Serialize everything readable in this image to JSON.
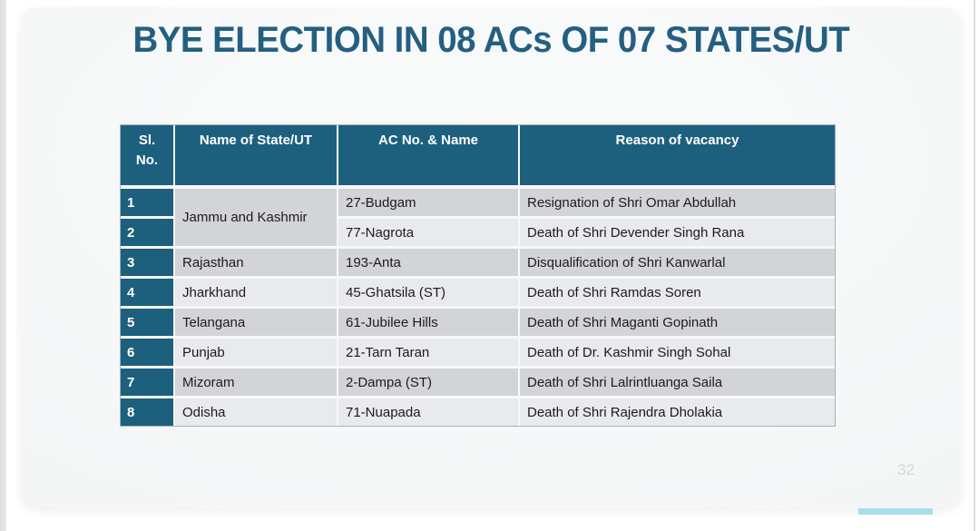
{
  "slide": {
    "title": "BYE ELECTION IN 08 ACs OF 07 STATES/UT",
    "page_number": "32"
  },
  "table": {
    "columns": [
      "Sl.\nNo.",
      "Name of State/UT",
      "AC No. & Name",
      "Reason of vacancy"
    ],
    "rows": [
      {
        "sl": "1",
        "state": "Jammu and Kashmir",
        "ac": "27-Budgam",
        "reason": "Resignation of Shri Omar Abdullah"
      },
      {
        "sl": "2",
        "state": null,
        "ac": "77-Nagrota",
        "reason": "Death of Shri Devender Singh Rana"
      },
      {
        "sl": "3",
        "state": "Rajasthan",
        "ac": "193-Anta",
        "reason": "Disqualification of Shri Kanwarlal"
      },
      {
        "sl": "4",
        "state": "Jharkhand",
        "ac": "45-Ghatsila (ST)",
        "reason": "Death of Shri Ramdas Soren"
      },
      {
        "sl": "5",
        "state": "Telangana",
        "ac": "61-Jubilee Hills",
        "reason": "Death of Shri Maganti Gopinath"
      },
      {
        "sl": "6",
        "state": "Punjab",
        "ac": "21-Tarn Taran",
        "reason": "Death of Dr. Kashmir Singh Sohal"
      },
      {
        "sl": "7",
        "state": "Mizoram",
        "ac": "2-Dampa (ST)",
        "reason": "Death of Shri Lalrintluanga Saila"
      },
      {
        "sl": "8",
        "state": "Odisha",
        "ac": "71-Nuapada",
        "reason": "Death of Shri Rajendra Dholakia"
      }
    ]
  },
  "colors": {
    "title_text": "#245f82",
    "header_bg": "#1d607e",
    "header_text": "#ffffff",
    "row_gray": "#d3d4d8",
    "row_light": "#e9eaee",
    "body_text": "#1b1b1b",
    "gap_color": "#f7f8f9",
    "accent_bar": "#a6dee9",
    "page_number_text": "#d6d8d9"
  }
}
